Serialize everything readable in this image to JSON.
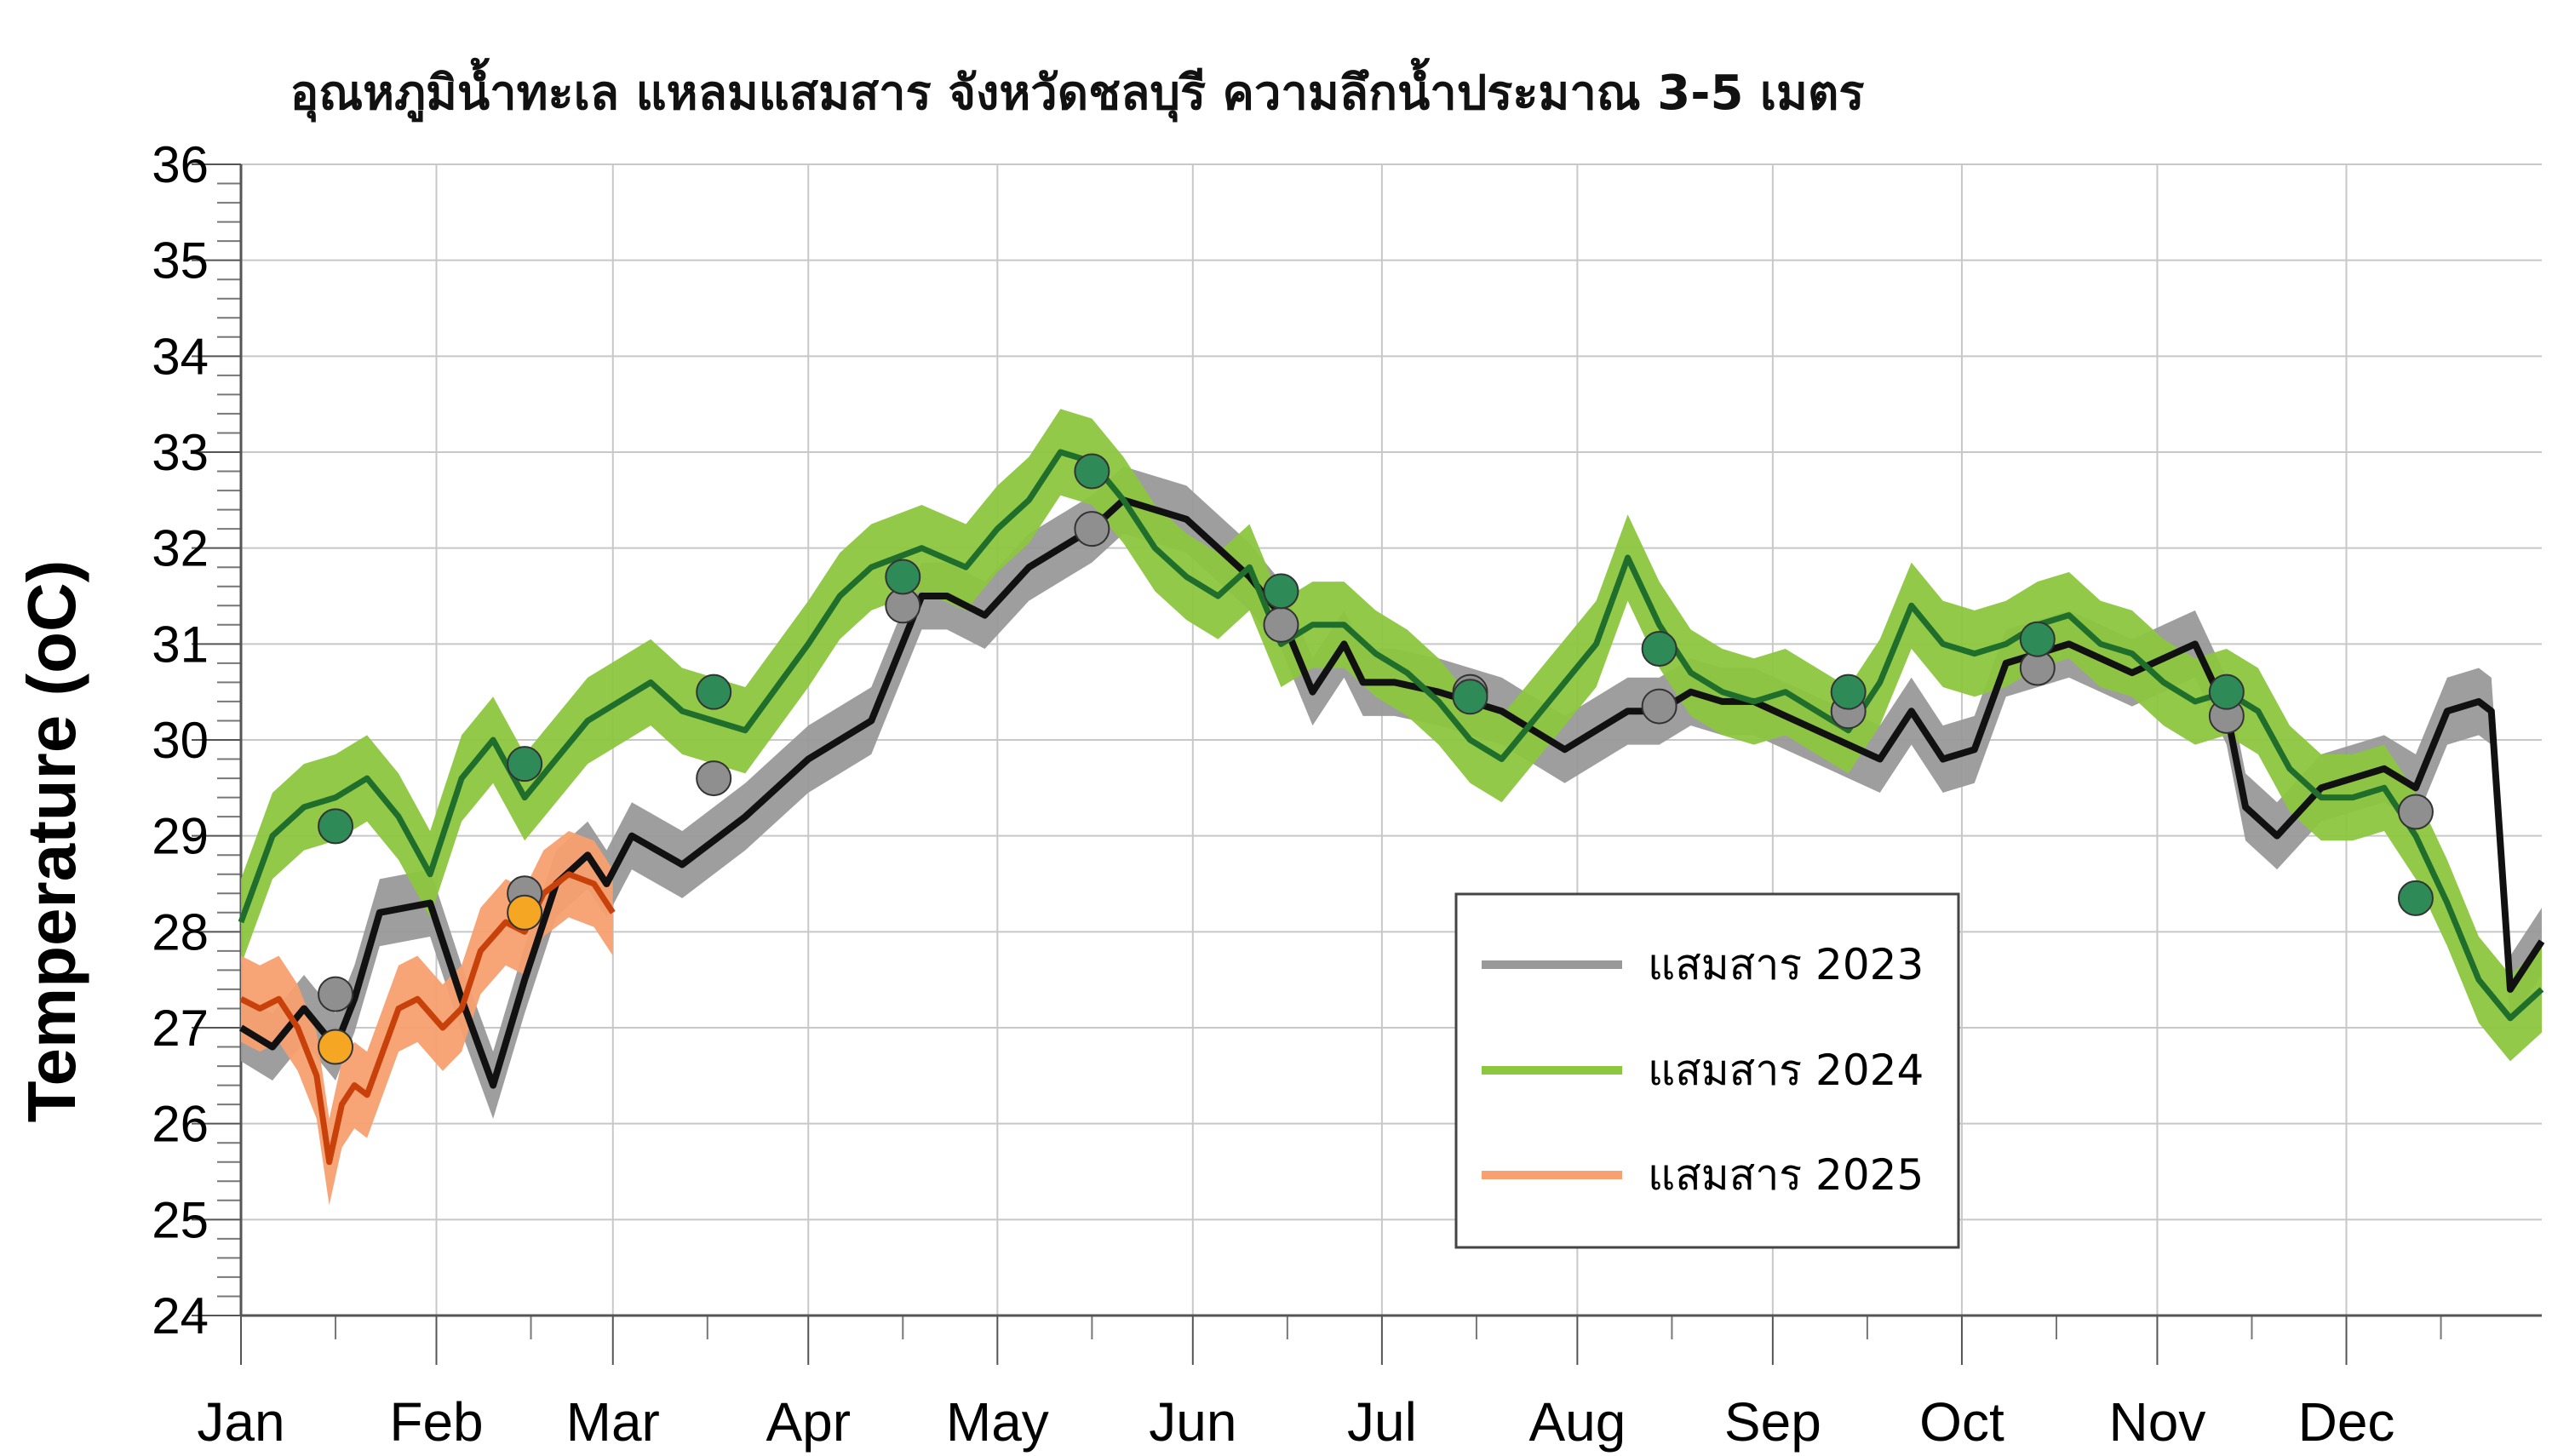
{
  "chart_data": {
    "type": "line",
    "title": "อุณหภูมิน้ำทะเล แหลมแสมสาร จังหวัดชลบุรี ความลึกน้ำประมาณ 3-5 เมตร",
    "xlabel": "",
    "ylabel": "Temperature (oC)",
    "ylim": [
      24,
      36
    ],
    "yticks": [
      "24",
      "25",
      "26",
      "27",
      "28",
      "29",
      "30",
      "31",
      "32",
      "33",
      "34",
      "35",
      "36"
    ],
    "xlim": [
      0,
      365
    ],
    "months": [
      "Jan",
      "Feb",
      "Mar",
      "Apr",
      "May",
      "Jun",
      "Jul",
      "Aug",
      "Sep",
      "Oct",
      "Nov",
      "Dec"
    ],
    "grid": true,
    "legend_position": "bottom-right",
    "colors": {
      "s2023_range": "#999999",
      "s2023_line": "#111111",
      "s2023_marker": "#8f8f8f",
      "s2024_range": "#8dc63f",
      "s2024_line": "#1f6e2c",
      "s2024_marker": "#2e8b57",
      "s2025_range": "#f7a070",
      "s2025_line": "#c8400a",
      "s2025_marker": "#f5a623"
    },
    "series": [
      {
        "name": "แสมสาร 2023",
        "x": [
          0,
          5,
          10,
          15,
          18,
          22,
          30,
          35,
          40,
          45,
          50,
          55,
          58,
          62,
          70,
          80,
          90,
          100,
          108,
          112,
          118,
          125,
          135,
          140,
          150,
          160,
          165,
          170,
          175,
          178,
          183,
          190,
          200,
          210,
          220,
          225,
          230,
          235,
          240,
          250,
          260,
          265,
          270,
          275,
          280,
          290,
          300,
          310,
          315,
          318,
          323,
          330,
          340,
          345,
          350,
          355,
          357,
          360,
          365
        ],
        "values": [
          27.0,
          26.8,
          27.2,
          26.8,
          27.3,
          28.2,
          28.3,
          27.3,
          26.4,
          27.5,
          28.5,
          28.8,
          28.5,
          29.0,
          28.7,
          29.2,
          29.8,
          30.2,
          31.5,
          31.5,
          31.3,
          31.8,
          32.2,
          32.5,
          32.3,
          31.7,
          31.3,
          30.5,
          31.0,
          30.6,
          30.6,
          30.5,
          30.3,
          29.9,
          30.3,
          30.3,
          30.5,
          30.4,
          30.4,
          30.1,
          29.8,
          30.3,
          29.8,
          29.9,
          30.8,
          31.0,
          30.7,
          31.0,
          30.3,
          29.3,
          29.0,
          29.5,
          29.7,
          29.5,
          30.3,
          30.4,
          30.3,
          27.4,
          27.9
        ],
        "markers": [
          [
            15,
            27.35
          ],
          [
            45,
            28.4
          ],
          [
            75,
            29.6
          ],
          [
            105,
            31.4
          ],
          [
            135,
            32.2
          ],
          [
            165,
            31.2
          ],
          [
            195,
            30.5
          ],
          [
            225,
            30.35
          ],
          [
            255,
            30.3
          ],
          [
            285,
            30.75
          ],
          [
            315,
            30.25
          ],
          [
            345,
            29.25
          ]
        ],
        "range": 0.35
      },
      {
        "name": "แสมสาร 2024",
        "x": [
          0,
          5,
          10,
          15,
          20,
          25,
          30,
          35,
          40,
          45,
          50,
          55,
          60,
          65,
          70,
          75,
          80,
          90,
          95,
          100,
          108,
          115,
          120,
          125,
          130,
          135,
          140,
          145,
          150,
          155,
          160,
          165,
          170,
          175,
          180,
          185,
          190,
          195,
          200,
          205,
          210,
          215,
          220,
          225,
          230,
          235,
          240,
          245,
          250,
          255,
          260,
          265,
          270,
          275,
          280,
          285,
          290,
          295,
          300,
          305,
          310,
          315,
          320,
          325,
          330,
          335,
          340,
          345,
          350,
          355,
          360,
          365
        ],
        "values": [
          28.1,
          29.0,
          29.3,
          29.4,
          29.6,
          29.2,
          28.6,
          29.6,
          30.0,
          29.4,
          29.8,
          30.2,
          30.4,
          30.6,
          30.3,
          30.2,
          30.1,
          31.0,
          31.5,
          31.8,
          32.0,
          31.8,
          32.2,
          32.5,
          33.0,
          32.9,
          32.5,
          32.0,
          31.7,
          31.5,
          31.8,
          31.0,
          31.2,
          31.2,
          30.9,
          30.7,
          30.4,
          30.0,
          29.8,
          30.2,
          30.6,
          31.0,
          31.9,
          31.2,
          30.7,
          30.5,
          30.4,
          30.5,
          30.3,
          30.1,
          30.6,
          31.4,
          31.0,
          30.9,
          31.0,
          31.2,
          31.3,
          31.0,
          30.9,
          30.6,
          30.4,
          30.5,
          30.3,
          29.7,
          29.4,
          29.4,
          29.5,
          29.0,
          28.3,
          27.5,
          27.1,
          27.4
        ],
        "markers": [
          [
            15,
            29.1
          ],
          [
            45,
            29.75
          ],
          [
            75,
            30.5
          ],
          [
            105,
            31.7
          ],
          [
            105,
            31.7
          ],
          [
            105,
            31.7
          ],
          [
            105,
            31.7
          ],
          [
            135,
            32.8
          ],
          [
            165,
            31.55
          ],
          [
            195,
            30.45
          ],
          [
            225,
            30.95
          ],
          [
            255,
            30.5
          ],
          [
            285,
            31.05
          ],
          [
            315,
            30.5
          ],
          [
            345,
            28.35
          ]
        ],
        "range": 0.45
      },
      {
        "name": "แสมสาร 2025",
        "x": [
          0,
          3,
          6,
          9,
          12,
          14,
          16,
          18,
          20,
          25,
          28,
          32,
          35,
          38,
          42,
          45,
          48,
          52,
          56,
          59
        ],
        "values": [
          27.3,
          27.2,
          27.3,
          27.0,
          26.5,
          25.6,
          26.2,
          26.4,
          26.3,
          27.2,
          27.3,
          27.0,
          27.2,
          27.8,
          28.1,
          28.0,
          28.4,
          28.6,
          28.5,
          28.2
        ],
        "markers": [
          [
            15,
            26.8
          ],
          [
            45,
            28.2
          ]
        ],
        "range": 0.45
      }
    ]
  }
}
